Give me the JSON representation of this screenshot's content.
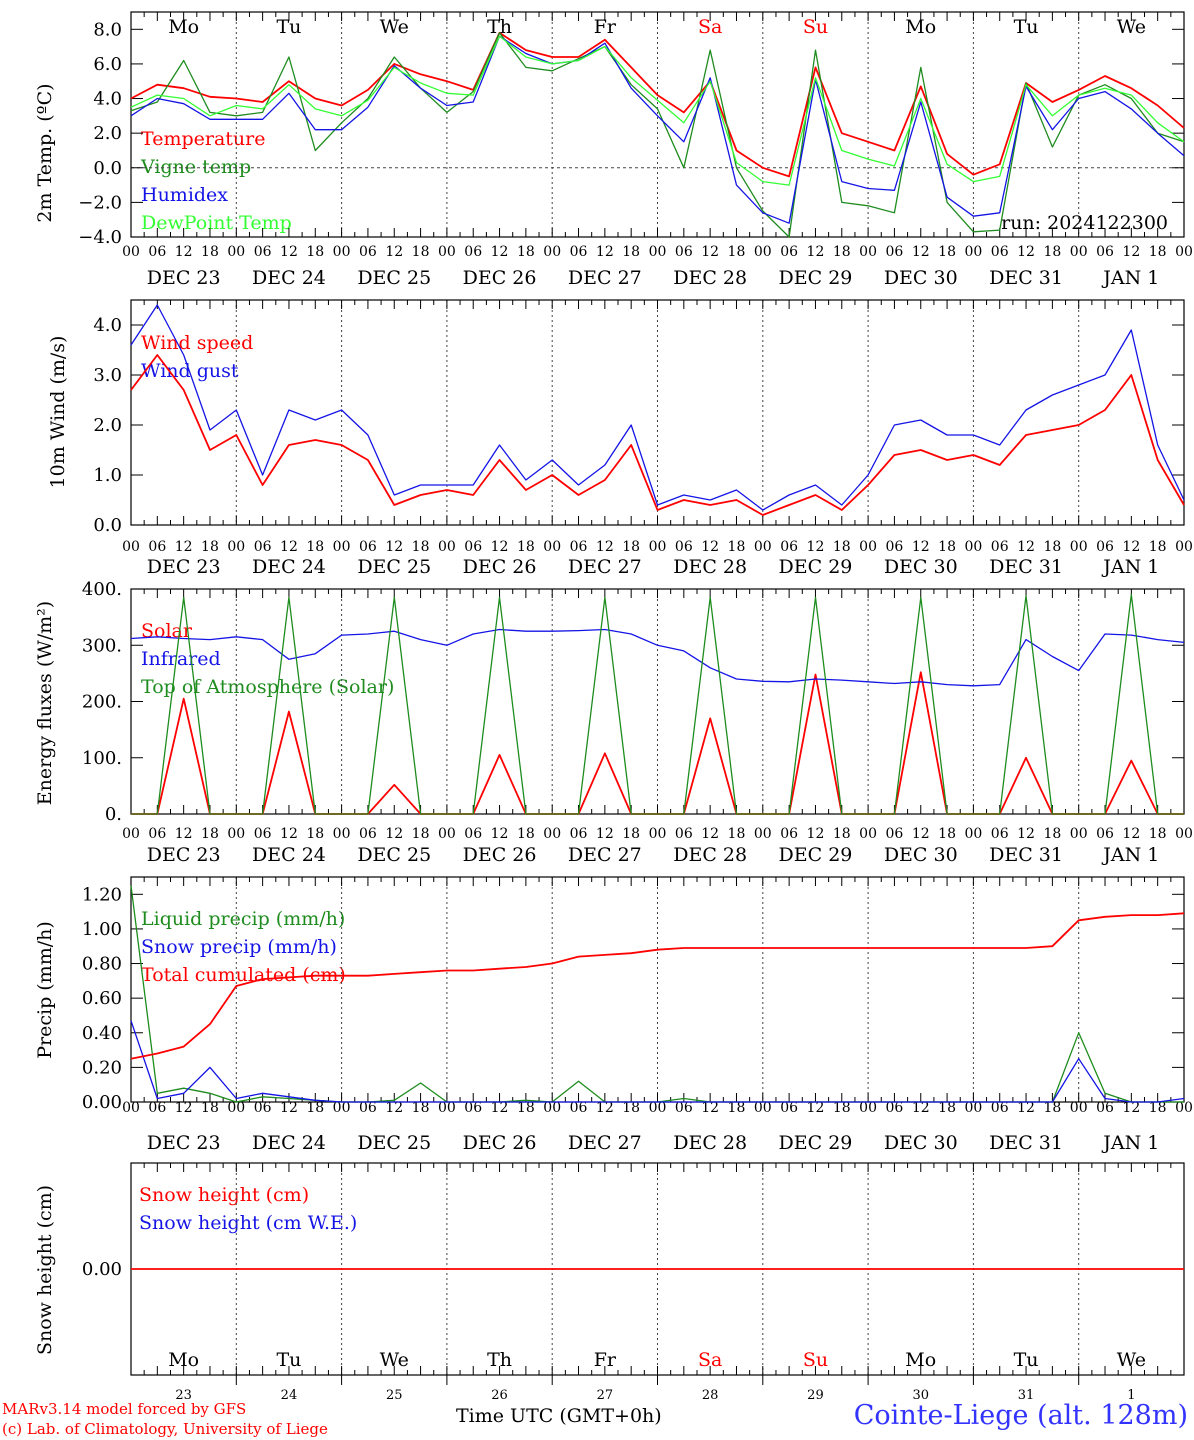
{
  "footer": {
    "model_line": "MARv3.14 model forced by GFS",
    "credit_line": "(c) Lab. of Climatology, University of Liege",
    "time_axis": "Time UTC (GMT+0h)",
    "station": "Cointe-Liege (alt. 128m)"
  },
  "colors": {
    "red": "#ff0000",
    "green": "#1e8c1e",
    "blue": "#1414e6",
    "lightgreen": "#33ff33",
    "weekend": "#ff0000",
    "grid": "#444444"
  },
  "days": {
    "weekday_labels": [
      "Mo",
      "Tu",
      "We",
      "Th",
      "Fr",
      "Sa",
      "Su",
      "Mo",
      "Tu",
      "We"
    ],
    "weekend_index": [
      5,
      6
    ],
    "date_labels": [
      "DEC 23",
      "DEC 24",
      "DEC 25",
      "DEC 26",
      "DEC 27",
      "DEC 28",
      "DEC 29",
      "DEC 30",
      "DEC 31",
      "JAN  1"
    ],
    "day_numbers": [
      "23",
      "24",
      "25",
      "26",
      "27",
      "28",
      "29",
      "30",
      "31",
      "1"
    ],
    "hour_ticks": [
      "00",
      "06",
      "12",
      "18"
    ],
    "end_tick": "00"
  },
  "chart_data": [
    {
      "type": "line",
      "panel": "temperature",
      "ylabel": "2m Temp. (ºC)",
      "ylim": [
        -4,
        9
      ],
      "yticks": [
        "8.0",
        "6.0",
        "4.0",
        "2.0",
        "0.0",
        "−2.0",
        "−4.0"
      ],
      "annotation": "run: 2024122300",
      "x_hours": [
        0,
        6,
        12,
        18,
        24,
        30,
        36,
        42,
        48,
        54,
        60,
        66,
        72,
        78,
        84,
        90,
        96,
        102,
        108,
        114,
        120,
        126,
        132,
        138,
        144,
        150,
        156,
        162,
        168,
        174,
        180,
        186,
        192,
        198,
        204,
        210,
        216,
        222,
        228,
        234,
        240
      ],
      "series": [
        {
          "name": "Temperature",
          "color": "red",
          "values": [
            4.0,
            4.8,
            4.6,
            4.1,
            4.0,
            3.8,
            5.0,
            4.0,
            3.6,
            4.5,
            6.0,
            5.4,
            5.0,
            4.5,
            7.8,
            6.8,
            6.4,
            6.4,
            7.4,
            5.8,
            4.2,
            3.2,
            5.0,
            1.0,
            0.0,
            -0.5,
            5.8,
            2.0,
            1.5,
            1.0,
            4.7,
            0.8,
            -0.4,
            0.2,
            4.9,
            3.8,
            4.5,
            5.3,
            4.6,
            3.6,
            2.3
          ]
        },
        {
          "name": "Vigne temp",
          "color": "green",
          "values": [
            3.3,
            3.8,
            6.2,
            3.2,
            3.0,
            3.2,
            6.4,
            1.0,
            2.6,
            4.0,
            6.4,
            4.6,
            3.2,
            4.4,
            7.8,
            5.8,
            5.6,
            6.3,
            7.0,
            4.8,
            3.4,
            0.0,
            6.8,
            0.0,
            -2.5,
            -4.0,
            6.8,
            -2.0,
            -2.2,
            -2.6,
            5.8,
            -2.0,
            -3.7,
            -3.6,
            4.9,
            1.2,
            4.2,
            4.8,
            4.0,
            2.0,
            1.5
          ]
        },
        {
          "name": "Humidex",
          "color": "blue",
          "values": [
            3.0,
            4.0,
            3.7,
            2.8,
            2.8,
            2.8,
            4.3,
            2.2,
            2.2,
            3.5,
            5.9,
            4.6,
            3.6,
            3.8,
            7.6,
            6.6,
            6.0,
            6.2,
            7.2,
            4.6,
            3.0,
            1.5,
            5.2,
            -1.0,
            -2.6,
            -3.2,
            5.1,
            -0.8,
            -1.2,
            -1.3,
            3.8,
            -1.7,
            -2.8,
            -2.6,
            4.7,
            2.2,
            4.0,
            4.4,
            3.4,
            2.0,
            0.7
          ]
        },
        {
          "name": "DewPoint Temp",
          "color": "lightgreen",
          "values": [
            3.5,
            4.2,
            4.0,
            3.0,
            3.6,
            3.4,
            4.8,
            3.4,
            3.0,
            3.9,
            5.8,
            4.9,
            4.3,
            4.2,
            7.6,
            6.4,
            6.0,
            6.2,
            7.0,
            5.2,
            3.9,
            2.6,
            5.0,
            0.3,
            -0.8,
            -1.0,
            5.2,
            1.0,
            0.5,
            0.1,
            4.0,
            0.2,
            -0.8,
            -0.5,
            4.8,
            3.0,
            4.2,
            4.6,
            4.2,
            2.6,
            1.5
          ]
        }
      ]
    },
    {
      "type": "line",
      "panel": "wind",
      "ylabel": "10m Wind (m/s)",
      "ylim": [
        0,
        4.5
      ],
      "yticks": [
        "4.0",
        "3.0",
        "2.0",
        "1.0",
        "0.0"
      ],
      "x_hours": [
        0,
        6,
        12,
        18,
        24,
        30,
        36,
        42,
        48,
        54,
        60,
        66,
        72,
        78,
        84,
        90,
        96,
        102,
        108,
        114,
        120,
        126,
        132,
        138,
        144,
        150,
        156,
        162,
        168,
        174,
        180,
        186,
        192,
        198,
        204,
        210,
        216,
        222,
        228,
        234,
        240
      ],
      "series": [
        {
          "name": "Wind speed",
          "color": "red",
          "values": [
            2.7,
            3.4,
            2.7,
            1.5,
            1.8,
            0.8,
            1.6,
            1.7,
            1.6,
            1.3,
            0.4,
            0.6,
            0.7,
            0.6,
            1.3,
            0.7,
            1.0,
            0.6,
            0.9,
            1.6,
            0.3,
            0.5,
            0.4,
            0.5,
            0.2,
            0.4,
            0.6,
            0.3,
            0.8,
            1.4,
            1.5,
            1.3,
            1.4,
            1.2,
            1.8,
            1.9,
            2.0,
            2.3,
            3.0,
            1.3,
            0.4
          ]
        },
        {
          "name": "Wind gust",
          "color": "blue",
          "values": [
            3.6,
            4.4,
            3.4,
            1.9,
            2.3,
            1.0,
            2.3,
            2.1,
            2.3,
            1.8,
            0.6,
            0.8,
            0.8,
            0.8,
            1.6,
            0.9,
            1.3,
            0.8,
            1.2,
            2.0,
            0.4,
            0.6,
            0.5,
            0.7,
            0.3,
            0.6,
            0.8,
            0.4,
            1.0,
            2.0,
            2.1,
            1.8,
            1.8,
            1.6,
            2.3,
            2.6,
            2.8,
            3.0,
            3.9,
            1.6,
            0.5
          ]
        }
      ]
    },
    {
      "type": "line",
      "panel": "energy",
      "ylabel": "Energy fluxes (W/m²)",
      "ylim": [
        0,
        400
      ],
      "yticks": [
        "400.",
        "300.",
        "200.",
        "100.",
        "0."
      ],
      "x_hours": [
        0,
        6,
        12,
        18,
        24,
        30,
        36,
        42,
        48,
        54,
        60,
        66,
        72,
        78,
        84,
        90,
        96,
        102,
        108,
        114,
        120,
        126,
        132,
        138,
        144,
        150,
        156,
        162,
        168,
        174,
        180,
        186,
        192,
        198,
        204,
        210,
        216,
        222,
        228,
        234,
        240
      ],
      "series": [
        {
          "name": "Solar",
          "color": "red",
          "values": [
            0,
            0,
            205,
            0,
            0,
            0,
            182,
            0,
            0,
            0,
            52,
            0,
            0,
            0,
            105,
            0,
            0,
            0,
            108,
            0,
            0,
            0,
            170,
            0,
            0,
            0,
            248,
            0,
            0,
            0,
            252,
            0,
            0,
            0,
            100,
            0,
            0,
            0,
            95,
            0,
            0
          ]
        },
        {
          "name": "Infrared",
          "color": "blue",
          "values": [
            312,
            315,
            312,
            310,
            315,
            310,
            275,
            285,
            318,
            320,
            325,
            310,
            300,
            320,
            328,
            325,
            325,
            326,
            328,
            320,
            300,
            290,
            260,
            240,
            236,
            235,
            240,
            238,
            235,
            232,
            235,
            230,
            228,
            230,
            310,
            280,
            255,
            320,
            318,
            310,
            305
          ]
        },
        {
          "name": "Top of Atmosphere (Solar)",
          "color": "green",
          "values": [
            0,
            0,
            385,
            0,
            0,
            0,
            385,
            0,
            0,
            0,
            385,
            0,
            0,
            0,
            385,
            0,
            0,
            0,
            385,
            0,
            0,
            0,
            385,
            0,
            0,
            0,
            385,
            0,
            0,
            0,
            385,
            0,
            0,
            0,
            388,
            0,
            0,
            0,
            390,
            0,
            0
          ]
        }
      ]
    },
    {
      "type": "line",
      "panel": "precip",
      "ylabel": "Precip (mm/h)",
      "ylim": [
        0,
        1.3
      ],
      "yticks": [
        "1.20",
        "1.00",
        "0.80",
        "0.60",
        "0.40",
        "0.20",
        "0.00"
      ],
      "x_hours": [
        0,
        6,
        12,
        18,
        24,
        30,
        36,
        42,
        48,
        54,
        60,
        66,
        72,
        78,
        84,
        90,
        96,
        102,
        108,
        114,
        120,
        126,
        132,
        138,
        144,
        150,
        156,
        162,
        168,
        174,
        180,
        186,
        192,
        198,
        204,
        210,
        216,
        222,
        228,
        234,
        240
      ],
      "series": [
        {
          "name": "Liquid precip (mm/h)",
          "color": "green",
          "values": [
            1.25,
            0.05,
            0.08,
            0.05,
            0.0,
            0.03,
            0.02,
            0.01,
            0.0,
            0.0,
            0.01,
            0.11,
            0.0,
            0.0,
            0.0,
            0.01,
            0.0,
            0.12,
            0.0,
            0.0,
            0.0,
            0.02,
            0.0,
            0.0,
            0.0,
            0.0,
            0.0,
            0.0,
            0.0,
            0.0,
            0.0,
            0.0,
            0.0,
            0.0,
            0.0,
            0.0,
            0.4,
            0.05,
            0.0,
            0.0,
            0.0
          ]
        },
        {
          "name": "Snow precip (mm/h)",
          "color": "blue",
          "values": [
            0.47,
            0.02,
            0.05,
            0.2,
            0.02,
            0.05,
            0.03,
            0.01,
            0.0,
            0.0,
            0.0,
            0.0,
            0.0,
            0.0,
            0.0,
            0.0,
            0.0,
            0.0,
            0.0,
            0.0,
            0.0,
            0.0,
            0.0,
            0.0,
            0.0,
            0.0,
            0.0,
            0.0,
            0.0,
            0.0,
            0.0,
            0.0,
            0.0,
            0.0,
            0.0,
            0.0,
            0.25,
            0.02,
            0.0,
            0.0,
            0.02
          ]
        },
        {
          "name": "Total cumulated (cm)",
          "color": "red",
          "values": [
            0.25,
            0.28,
            0.32,
            0.45,
            0.67,
            0.71,
            0.72,
            0.73,
            0.73,
            0.73,
            0.74,
            0.75,
            0.76,
            0.76,
            0.77,
            0.78,
            0.8,
            0.84,
            0.85,
            0.86,
            0.88,
            0.89,
            0.89,
            0.89,
            0.89,
            0.89,
            0.89,
            0.89,
            0.89,
            0.89,
            0.89,
            0.89,
            0.89,
            0.89,
            0.89,
            0.9,
            1.05,
            1.07,
            1.08,
            1.08,
            1.09
          ]
        }
      ]
    },
    {
      "type": "line",
      "panel": "snow",
      "ylabel": "Snow height (cm)",
      "ylim": [
        -1,
        1
      ],
      "yticks": [
        "0.00"
      ],
      "x_hours": [
        0,
        240
      ],
      "series": [
        {
          "name": "Snow height (cm)",
          "color": "red",
          "values": [
            0,
            0
          ]
        },
        {
          "name": "Snow height (cm W.E.)",
          "color": "blue",
          "values": [
            0,
            0
          ]
        }
      ]
    }
  ]
}
